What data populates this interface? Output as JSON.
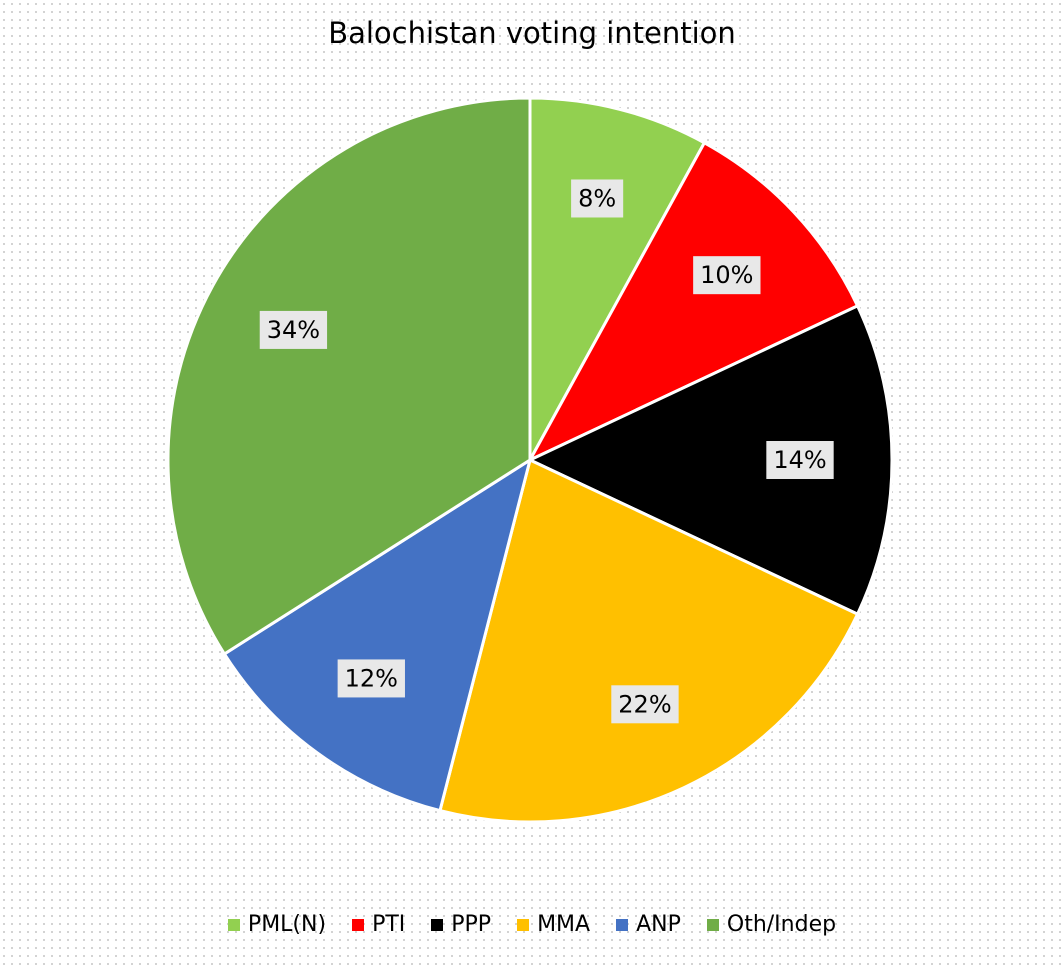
{
  "chart_data": {
    "type": "pie",
    "title": "Balochistan voting intention",
    "categories": [
      "PML(N)",
      "PTI",
      "PPP",
      "MMA",
      "ANP",
      "Oth/Indep"
    ],
    "values": [
      8,
      10,
      14,
      22,
      12,
      34
    ],
    "data_labels": [
      "8%",
      "10%",
      "14%",
      "22%",
      "12%",
      "34%"
    ],
    "colors": [
      "#92d050",
      "#ff0000",
      "#000000",
      "#ffc000",
      "#4472c4",
      "#70ad47"
    ],
    "legend_position": "bottom",
    "start_angle": "top",
    "direction": "clockwise"
  }
}
